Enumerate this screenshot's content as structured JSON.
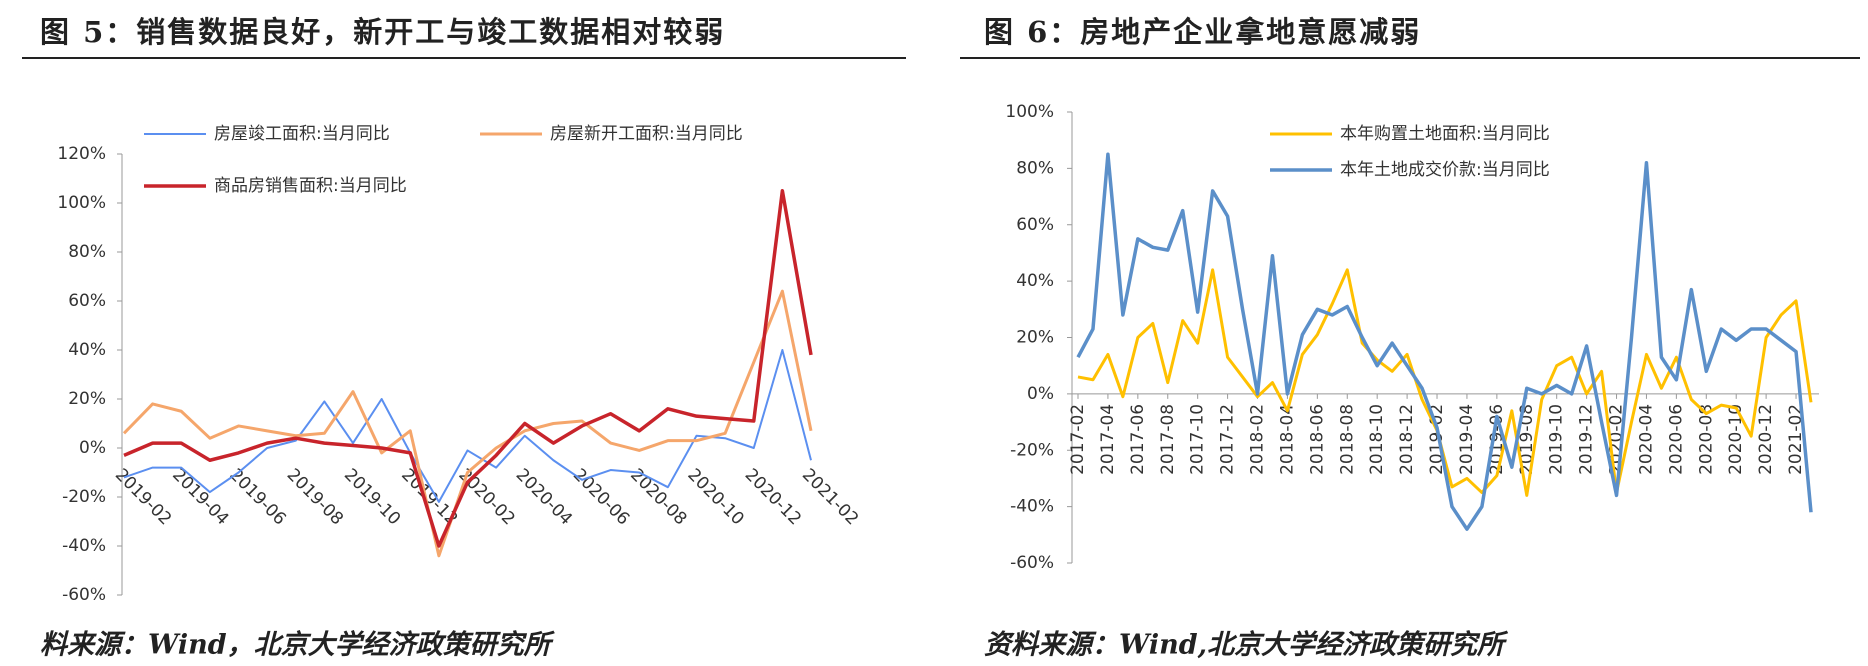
{
  "chart_data": [
    {
      "type": "line",
      "title": "图 5：销售数据良好，新开工与竣工数据相对较弱",
      "source": "料来源：Wind，北京大学经济政策研究所",
      "categories": [
        "2019-02",
        null,
        "2019-04",
        null,
        "2019-06",
        null,
        "2019-08",
        null,
        "2019-10",
        null,
        "2019-12",
        null,
        "2020-02",
        null,
        "2020-04",
        null,
        "2020-06",
        null,
        "2020-08",
        null,
        "2020-10",
        null,
        "2020-12",
        null,
        "2021-02"
      ],
      "series": [
        {
          "name": "房屋竣工面积:当月同比",
          "color": "#5b8ff0",
          "values": [
            -12,
            -8,
            -8,
            -18,
            -10,
            0,
            3,
            19,
            2,
            20,
            -2,
            -22,
            -1,
            -8,
            5,
            -5,
            -13,
            -9,
            -10,
            -16,
            5,
            4,
            0,
            40,
            -5
          ]
        },
        {
          "name": "房屋新开工面积:当月同比",
          "color": "#f5a66b",
          "values": [
            6,
            18,
            15,
            4,
            9,
            7,
            5,
            6,
            23,
            -2,
            7,
            -44,
            -10,
            0,
            7,
            10,
            11,
            2,
            -1,
            3,
            3,
            6,
            35,
            64,
            7
          ]
        },
        {
          "name": "商品房销售面积:当月同比",
          "color": "#c8242b",
          "values": [
            -3,
            2,
            2,
            -5,
            -2,
            2,
            4,
            2,
            1,
            0,
            -2,
            -40,
            -14,
            -3,
            10,
            2,
            9,
            14,
            7,
            16,
            13,
            12,
            11,
            105,
            38
          ]
        }
      ],
      "ylim": [
        -60,
        120
      ],
      "yticks": [
        {
          "value": -60,
          "label": "-60%"
        },
        {
          "value": -40,
          "label": "-40%"
        },
        {
          "value": -20,
          "label": "-20%"
        },
        {
          "value": 0,
          "label": "0%"
        },
        {
          "value": 20,
          "label": "20%"
        },
        {
          "value": 40,
          "label": "40%"
        },
        {
          "value": 60,
          "label": "60%"
        },
        {
          "value": 80,
          "label": "80%"
        },
        {
          "value": 100,
          "label": "100%"
        },
        {
          "value": 120,
          "label": "120%"
        }
      ],
      "x_label_rotation": 45
    },
    {
      "type": "line",
      "title": "图 6：房地产企业拿地意愿减弱",
      "source": "资料来源：Wind,北京大学经济政策研究所",
      "categories": [
        "2017-02",
        null,
        "2017-04",
        null,
        "2017-06",
        null,
        "2017-08",
        null,
        "2017-10",
        null,
        "2017-12",
        null,
        "2018-02",
        null,
        "2018-04",
        null,
        "2018-06",
        null,
        "2018-08",
        null,
        "2018-10",
        null,
        "2018-12",
        null,
        "2019-02",
        null,
        "2019-04",
        null,
        "2019-06",
        null,
        "2019-08",
        null,
        "2019-10",
        null,
        "2019-12",
        null,
        "2020-02",
        null,
        "2020-04",
        null,
        "2020-06",
        null,
        "2020-08",
        null,
        "2020-10",
        null,
        "2020-12",
        null,
        "2021-02",
        null
      ],
      "series": [
        {
          "name": "本年购置土地面积:当月同比",
          "color": "#ffc000",
          "values": [
            6,
            5,
            14,
            -1,
            20,
            25,
            4,
            26,
            18,
            44,
            13,
            6,
            -1,
            4,
            -6,
            14,
            21,
            32,
            44,
            18,
            12,
            8,
            14,
            -2,
            -13,
            -33,
            -30,
            -35,
            -29,
            -6,
            -36,
            -2,
            10,
            13,
            0,
            8,
            -35,
            -10,
            14,
            2,
            13,
            -2,
            -7,
            -4,
            -5,
            -15,
            20,
            28,
            33,
            -3
          ]
        },
        {
          "name": "本年土地成交价款:当月同比",
          "color": "#5b8fc9",
          "values": [
            13,
            23,
            85,
            28,
            55,
            52,
            51,
            65,
            29,
            72,
            63,
            30,
            0,
            49,
            0,
            21,
            30,
            28,
            31,
            20,
            10,
            18,
            10,
            2,
            -12,
            -40,
            -48,
            -40,
            -8,
            -26,
            2,
            0,
            3,
            0,
            17,
            -10,
            -36,
            20,
            82,
            13,
            5,
            37,
            8,
            23,
            19,
            23,
            23,
            19,
            15,
            -42
          ]
        }
      ],
      "ylim": [
        -60,
        100
      ],
      "yticks": [
        {
          "value": -60,
          "label": "-60%"
        },
        {
          "value": -40,
          "label": "-40%"
        },
        {
          "value": -20,
          "label": "-20%"
        },
        {
          "value": 0,
          "label": "0%"
        },
        {
          "value": 20,
          "label": "20%"
        },
        {
          "value": 40,
          "label": "40%"
        },
        {
          "value": 60,
          "label": "60%"
        },
        {
          "value": 80,
          "label": "80%"
        },
        {
          "value": 100,
          "label": "100%"
        }
      ],
      "x_label_rotation": -90
    }
  ]
}
